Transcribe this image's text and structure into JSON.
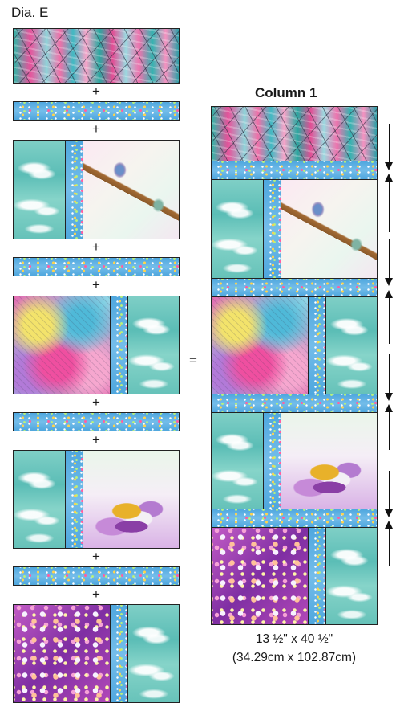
{
  "diagram": {
    "title": "Dia. E",
    "column_title": "Column 1",
    "plus_sign": "+",
    "equals_sign": "=",
    "dimension_imperial": "13 ½\" x 40 ½\"",
    "dimension_metric": "(34.29cm x 102.87cm)",
    "left_blocks": [
      "patchwork-strip",
      "sashing",
      "bird-block",
      "sashing",
      "abstract-block",
      "sashing",
      "flower-block",
      "sashing",
      "floral-block"
    ],
    "column_blocks": [
      "patchwork-strip",
      "sashing",
      "bird-block",
      "sashing",
      "abstract-block",
      "sashing",
      "flower-block",
      "sashing",
      "floral-block"
    ],
    "arrows": [
      "down",
      "up",
      "down",
      "up",
      "down",
      "up",
      "down",
      "up"
    ],
    "colors": {
      "sashing_blue": "#62b4e6",
      "sky_teal": "#66c2b9",
      "patch_pink": "#e8519a",
      "floral_purple": "#a23fb2",
      "outline": "#222222"
    }
  }
}
